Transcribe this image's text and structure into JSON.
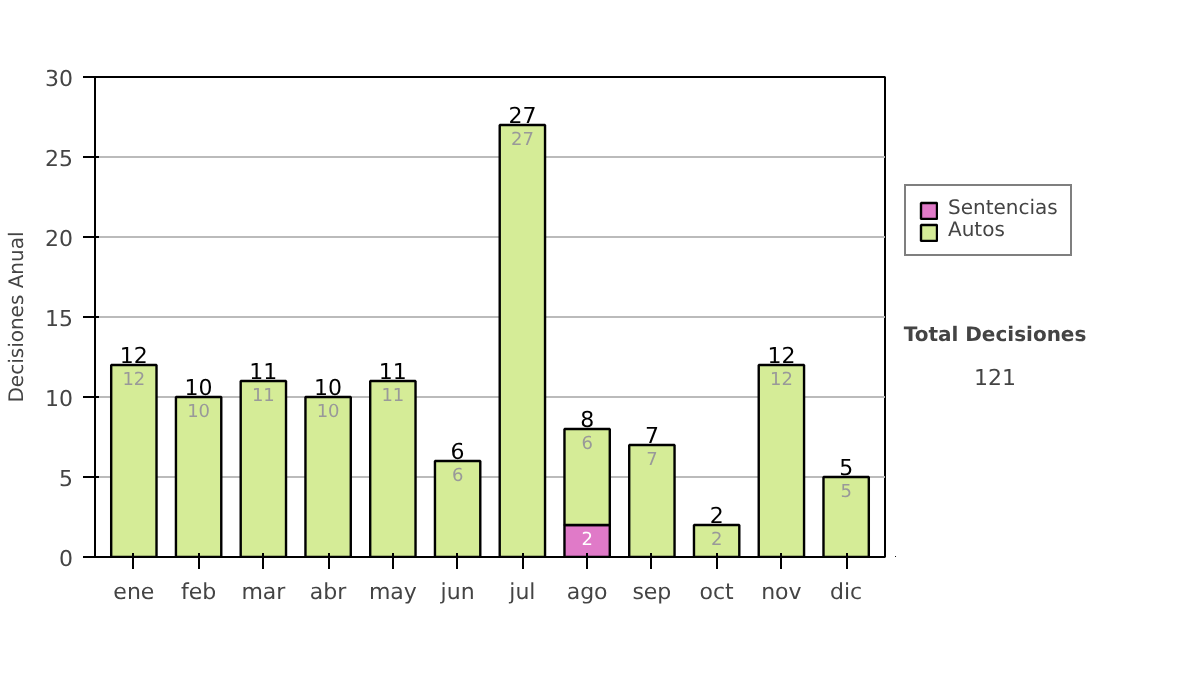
{
  "chart_data": {
    "type": "bar",
    "stacked": true,
    "ylabel": "Decisiones Anual",
    "categories": [
      "ene",
      "feb",
      "mar",
      "abr",
      "may",
      "jun",
      "jul",
      "ago",
      "sep",
      "oct",
      "nov",
      "dic"
    ],
    "series": [
      {
        "name": "Sentencias",
        "color": "#e07ac8",
        "values": [
          0,
          0,
          0,
          0,
          0,
          0,
          0,
          2,
          0,
          0,
          0,
          0
        ],
        "value_labels": [
          null,
          null,
          null,
          null,
          null,
          null,
          null,
          "2",
          null,
          null,
          null,
          null
        ]
      },
      {
        "name": "Autos",
        "color": "#d5ec97",
        "values": [
          12,
          10,
          11,
          10,
          11,
          6,
          27,
          6,
          7,
          2,
          12,
          5
        ],
        "value_labels": [
          "12",
          "10",
          "11",
          "10",
          "11",
          "6",
          "27",
          "6",
          "7",
          "2",
          "12",
          "5"
        ]
      }
    ],
    "totals": [
      "12",
      "10",
      "11",
      "10",
      "11",
      "6",
      "27",
      "8",
      "7",
      "2",
      "12",
      "5"
    ],
    "ylim": [
      0,
      30
    ],
    "yticks": [
      0,
      5,
      10,
      15,
      20,
      25,
      30
    ],
    "grid": "y",
    "legend": "right",
    "annotations": [
      "Total Decisiones",
      "121"
    ]
  }
}
